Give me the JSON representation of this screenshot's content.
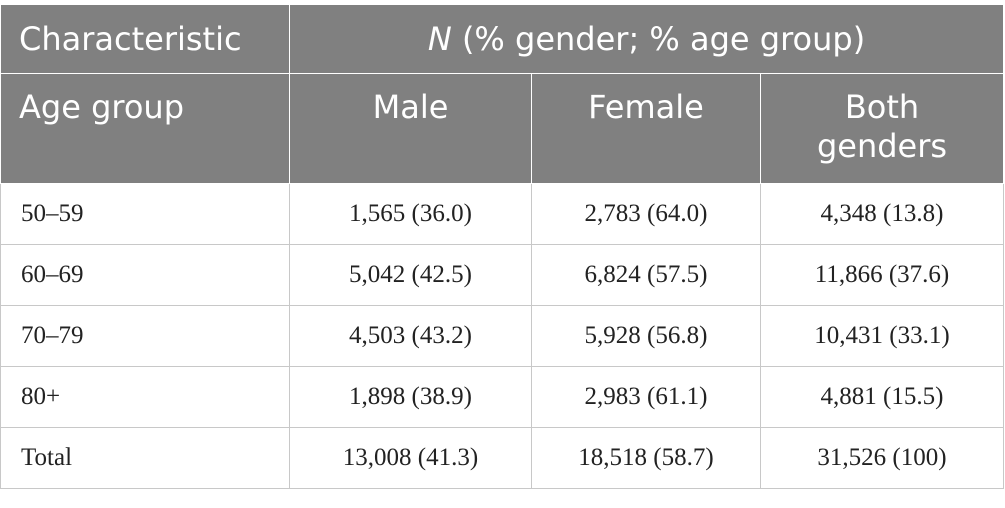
{
  "header": {
    "row1": {
      "characteristic": "Characteristic",
      "n_italic": "N",
      "n_rest": " (% gender; % age group)"
    },
    "row2": {
      "age_group": "Age group",
      "male": "Male",
      "female": "Female",
      "both_line1": "Both",
      "both_line2": "genders"
    }
  },
  "rows": [
    {
      "age": "50–59",
      "male": "1,565 (36.0)",
      "female": "2,783 (64.0)",
      "both": "4,348 (13.8)"
    },
    {
      "age": "60–69",
      "male": "5,042 (42.5)",
      "female": "6,824 (57.5)",
      "both": "11,866 (37.6)"
    },
    {
      "age": "70–79",
      "male": "4,503 (43.2)",
      "female": "5,928 (56.8)",
      "both": "10,431 (33.1)"
    },
    {
      "age": "80+",
      "male": "1,898 (38.9)",
      "female": "2,983 (61.1)",
      "both": "4,881 (15.5)"
    },
    {
      "age": "Total",
      "male": "13,008 (41.3)",
      "female": "18,518 (58.7)",
      "both": "31,526 (100)"
    }
  ],
  "colors": {
    "header_bg": "#808080",
    "header_text": "#ffffff",
    "body_text": "#222222",
    "grid": "#c8c8c8"
  }
}
